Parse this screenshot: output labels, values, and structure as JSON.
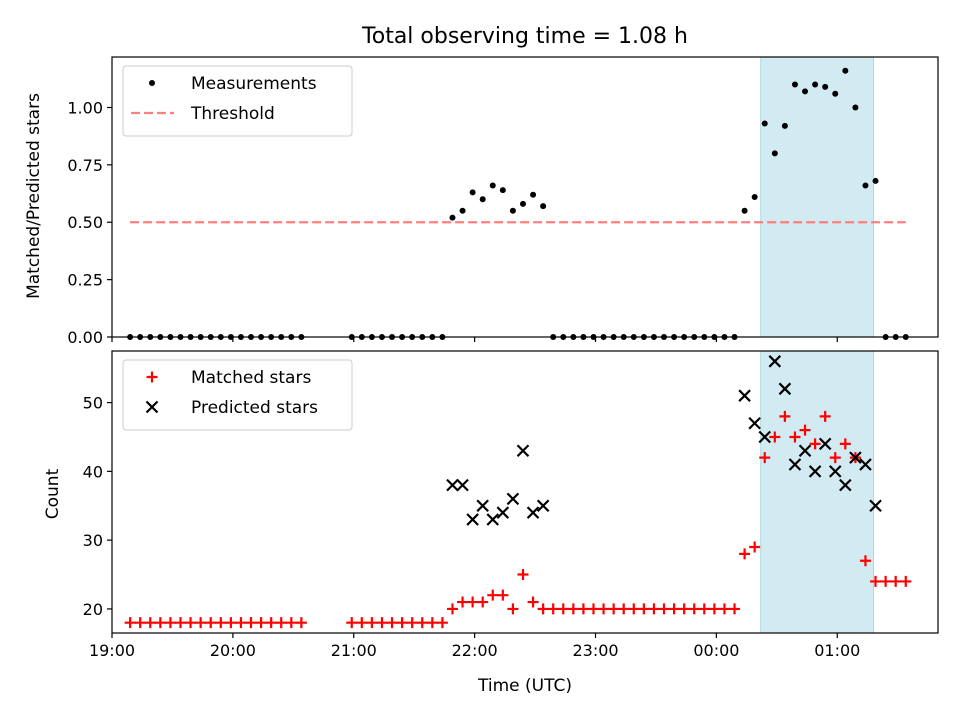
{
  "chart_data": [
    {
      "type": "scatter",
      "title": "Total observing time = 1.08 h",
      "ylabel": "Matched/Predicted stars",
      "xlabel": "",
      "xlim": [
        "19:00",
        "01:50"
      ],
      "ylim": [
        0,
        1.22
      ],
      "yticks": [
        "0.00",
        "0.25",
        "0.50",
        "0.75",
        "1.00"
      ],
      "grid": false,
      "legend_position": "top-left",
      "highlight_span": {
        "from": "00:22",
        "to": "01:18",
        "color": "#add8e6"
      },
      "series": [
        {
          "name": "Measurements",
          "color": "#000000",
          "marker": "dot",
          "points": [
            [
              "19:09",
              0
            ],
            [
              "19:14",
              0
            ],
            [
              "19:19",
              0
            ],
            [
              "19:24",
              0
            ],
            [
              "19:29",
              0
            ],
            [
              "19:34",
              0
            ],
            [
              "19:39",
              0
            ],
            [
              "19:44",
              0
            ],
            [
              "19:49",
              0
            ],
            [
              "19:54",
              0
            ],
            [
              "19:59",
              0
            ],
            [
              "20:04",
              0
            ],
            [
              "20:09",
              0
            ],
            [
              "20:14",
              0
            ],
            [
              "20:19",
              0
            ],
            [
              "20:24",
              0
            ],
            [
              "20:29",
              0
            ],
            [
              "20:34",
              0
            ],
            [
              "20:59",
              0
            ],
            [
              "21:04",
              0
            ],
            [
              "21:09",
              0
            ],
            [
              "21:14",
              0
            ],
            [
              "21:19",
              0
            ],
            [
              "21:24",
              0
            ],
            [
              "21:29",
              0
            ],
            [
              "21:34",
              0
            ],
            [
              "21:39",
              0
            ],
            [
              "21:44",
              0
            ],
            [
              "21:49",
              0.52
            ],
            [
              "21:54",
              0.55
            ],
            [
              "21:59",
              0.63
            ],
            [
              "22:04",
              0.6
            ],
            [
              "22:09",
              0.66
            ],
            [
              "22:14",
              0.64
            ],
            [
              "22:19",
              0.55
            ],
            [
              "22:24",
              0.58
            ],
            [
              "22:29",
              0.62
            ],
            [
              "22:34",
              0.57
            ],
            [
              "22:39",
              0
            ],
            [
              "22:44",
              0
            ],
            [
              "22:49",
              0
            ],
            [
              "22:54",
              0
            ],
            [
              "22:59",
              0
            ],
            [
              "23:04",
              0
            ],
            [
              "23:09",
              0
            ],
            [
              "23:14",
              0
            ],
            [
              "23:19",
              0
            ],
            [
              "23:24",
              0
            ],
            [
              "23:29",
              0
            ],
            [
              "23:34",
              0
            ],
            [
              "23:39",
              0
            ],
            [
              "23:44",
              0
            ],
            [
              "23:49",
              0
            ],
            [
              "23:54",
              0
            ],
            [
              "23:59",
              0
            ],
            [
              "00:04",
              0
            ],
            [
              "00:09",
              0
            ],
            [
              "00:14",
              0.55
            ],
            [
              "00:19",
              0.61
            ],
            [
              "00:24",
              0.93
            ],
            [
              "00:29",
              0.8
            ],
            [
              "00:34",
              0.92
            ],
            [
              "00:39",
              1.1
            ],
            [
              "00:44",
              1.07
            ],
            [
              "00:49",
              1.1
            ],
            [
              "00:54",
              1.09
            ],
            [
              "00:59",
              1.06
            ],
            [
              "01:04",
              1.16
            ],
            [
              "01:09",
              1.0
            ],
            [
              "01:14",
              0.66
            ],
            [
              "01:19",
              0.68
            ],
            [
              "01:24",
              0
            ],
            [
              "01:29",
              0
            ],
            [
              "01:34",
              0
            ]
          ]
        },
        {
          "name": "Threshold",
          "color": "#ff7f7f",
          "style": "dashed",
          "points": [
            [
              "19:09",
              0.5
            ],
            [
              "01:34",
              0.5
            ]
          ]
        }
      ]
    },
    {
      "type": "scatter",
      "title": "",
      "ylabel": "Count",
      "xlabel": "Time (UTC)",
      "xlim": [
        "19:00",
        "01:50"
      ],
      "ylim": [
        16.5,
        57.5
      ],
      "xticks": [
        "19:00",
        "20:00",
        "21:00",
        "22:00",
        "23:00",
        "00:00",
        "01:00"
      ],
      "yticks": [
        "20",
        "30",
        "40",
        "50"
      ],
      "grid": false,
      "legend_position": "top-left",
      "highlight_span": {
        "from": "00:22",
        "to": "01:18",
        "color": "#add8e6"
      },
      "series": [
        {
          "name": "Matched stars",
          "color": "#ff0000",
          "marker": "plus",
          "points": [
            [
              "19:09",
              18
            ],
            [
              "19:14",
              18
            ],
            [
              "19:19",
              18
            ],
            [
              "19:24",
              18
            ],
            [
              "19:29",
              18
            ],
            [
              "19:34",
              18
            ],
            [
              "19:39",
              18
            ],
            [
              "19:44",
              18
            ],
            [
              "19:49",
              18
            ],
            [
              "19:54",
              18
            ],
            [
              "19:59",
              18
            ],
            [
              "20:04",
              18
            ],
            [
              "20:09",
              18
            ],
            [
              "20:14",
              18
            ],
            [
              "20:19",
              18
            ],
            [
              "20:24",
              18
            ],
            [
              "20:29",
              18
            ],
            [
              "20:34",
              18
            ],
            [
              "20:59",
              18
            ],
            [
              "21:04",
              18
            ],
            [
              "21:09",
              18
            ],
            [
              "21:14",
              18
            ],
            [
              "21:19",
              18
            ],
            [
              "21:24",
              18
            ],
            [
              "21:29",
              18
            ],
            [
              "21:34",
              18
            ],
            [
              "21:39",
              18
            ],
            [
              "21:44",
              18
            ],
            [
              "21:49",
              20
            ],
            [
              "21:54",
              21
            ],
            [
              "21:59",
              21
            ],
            [
              "22:04",
              21
            ],
            [
              "22:09",
              22
            ],
            [
              "22:14",
              22
            ],
            [
              "22:19",
              20
            ],
            [
              "22:24",
              25
            ],
            [
              "22:29",
              21
            ],
            [
              "22:34",
              20
            ],
            [
              "22:39",
              20
            ],
            [
              "22:44",
              20
            ],
            [
              "22:49",
              20
            ],
            [
              "22:54",
              20
            ],
            [
              "22:59",
              20
            ],
            [
              "23:04",
              20
            ],
            [
              "23:09",
              20
            ],
            [
              "23:14",
              20
            ],
            [
              "23:19",
              20
            ],
            [
              "23:24",
              20
            ],
            [
              "23:29",
              20
            ],
            [
              "23:34",
              20
            ],
            [
              "23:39",
              20
            ],
            [
              "23:44",
              20
            ],
            [
              "23:49",
              20
            ],
            [
              "23:54",
              20
            ],
            [
              "23:59",
              20
            ],
            [
              "00:04",
              20
            ],
            [
              "00:09",
              20
            ],
            [
              "00:14",
              28
            ],
            [
              "00:19",
              29
            ],
            [
              "00:24",
              42
            ],
            [
              "00:29",
              45
            ],
            [
              "00:34",
              48
            ],
            [
              "00:39",
              45
            ],
            [
              "00:44",
              46
            ],
            [
              "00:49",
              44
            ],
            [
              "00:54",
              48
            ],
            [
              "00:59",
              42
            ],
            [
              "01:04",
              44
            ],
            [
              "01:09",
              42
            ],
            [
              "01:14",
              27
            ],
            [
              "01:19",
              24
            ],
            [
              "01:24",
              24
            ],
            [
              "01:29",
              24
            ],
            [
              "01:34",
              24
            ]
          ]
        },
        {
          "name": "Predicted stars",
          "color": "#000000",
          "marker": "x",
          "points": [
            [
              "21:49",
              38
            ],
            [
              "21:54",
              38
            ],
            [
              "21:59",
              33
            ],
            [
              "22:04",
              35
            ],
            [
              "22:09",
              33
            ],
            [
              "22:14",
              34
            ],
            [
              "22:19",
              36
            ],
            [
              "22:24",
              43
            ],
            [
              "22:29",
              34
            ],
            [
              "22:34",
              35
            ],
            [
              "00:14",
              51
            ],
            [
              "00:19",
              47
            ],
            [
              "00:24",
              45
            ],
            [
              "00:29",
              56
            ],
            [
              "00:34",
              52
            ],
            [
              "00:39",
              41
            ],
            [
              "00:44",
              43
            ],
            [
              "00:49",
              40
            ],
            [
              "00:54",
              44
            ],
            [
              "00:59",
              40
            ],
            [
              "01:04",
              38
            ],
            [
              "01:09",
              42
            ],
            [
              "01:14",
              41
            ],
            [
              "01:19",
              35
            ]
          ]
        }
      ]
    }
  ]
}
